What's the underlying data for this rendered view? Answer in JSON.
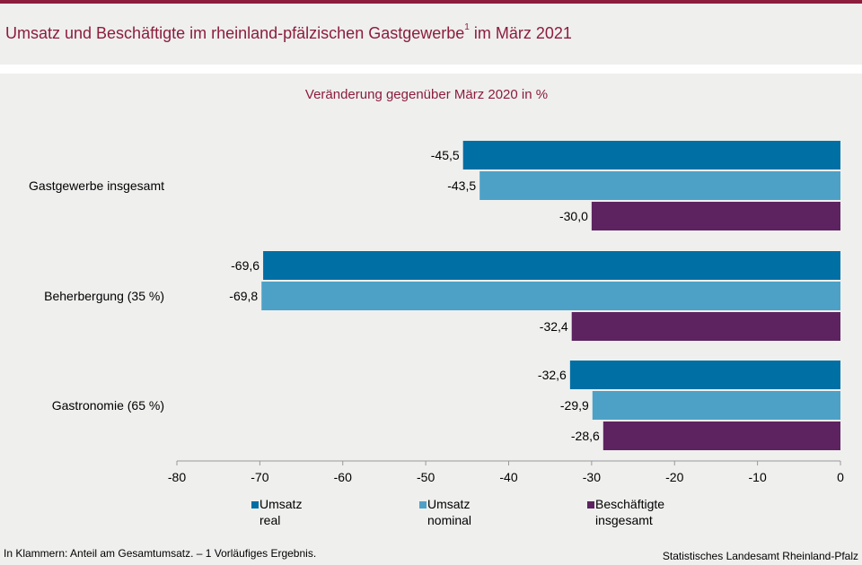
{
  "header": {
    "title": "Umsatz und Beschäftigte im rheinland-pfälzischen Gastgewerbe",
    "title_sup": "1",
    "title_suffix": " im März 2021"
  },
  "chart_data": {
    "type": "bar",
    "orientation": "horizontal",
    "subtitle": "Veränderung gegenüber März 2020 in %",
    "categories": [
      "Gastgewerbe insgesamt",
      "Beherbergung (35 %)",
      "Gastronomie (65 %)"
    ],
    "series": [
      {
        "name": "Umsatz real",
        "legend_lines": [
          "Umsatz",
          "real"
        ],
        "color": "#006fa4",
        "values": [
          -45.5,
          -69.6,
          -32.6
        ]
      },
      {
        "name": "Umsatz nominal",
        "legend_lines": [
          "Umsatz",
          "nominal"
        ],
        "color": "#4ea1c6",
        "values": [
          -43.5,
          -69.8,
          -29.9
        ]
      },
      {
        "name": "Beschäftigte insgesamt",
        "legend_lines": [
          "Beschäftigte",
          "insgesamt"
        ],
        "color": "#5d2360",
        "values": [
          -30.0,
          -32.4,
          -28.6
        ]
      }
    ],
    "xlim": [
      -80,
      0
    ],
    "xticks": [
      -80,
      -70,
      -60,
      -50,
      -40,
      -30,
      -20,
      -10,
      0
    ],
    "legend_position": "bottom",
    "decimal_separator": ","
  },
  "footer": {
    "note": "In Klammern: Anteil am Gesamtumsatz. – 1 Vorläufiges Ergebnis.",
    "source": "Statistisches Landesamt Rheinland-Pfalz"
  }
}
